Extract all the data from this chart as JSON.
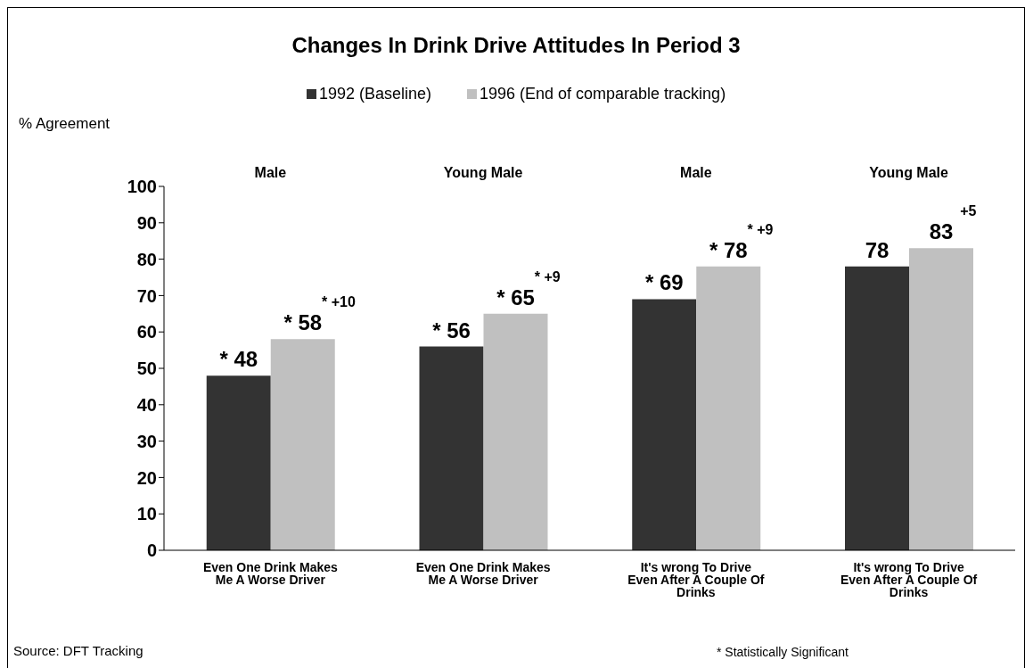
{
  "chart_data": {
    "type": "bar",
    "title": "Changes In Drink Drive Attitudes In Period 3",
    "ylabel": "% Agreement",
    "categories": [
      "Even One Drink Makes Me A Worse Driver",
      "Even One Drink Makes Me A Worse Driver",
      "It's wrong To Drive Even After A Couple Of Drinks",
      "It's wrong To Drive Even After A Couple Of Drinks"
    ],
    "series": [
      {
        "name": "1992 (Baseline)",
        "color": "#333333",
        "values": [
          48,
          56,
          69,
          78
        ],
        "value_labels": [
          "* 48",
          "* 56",
          "* 69",
          "78"
        ]
      },
      {
        "name": "1996 (End of comparable tracking)",
        "color": "#c0c0c0",
        "values": [
          58,
          65,
          78,
          83
        ],
        "value_labels": [
          "* 58",
          "* 65",
          "* 78",
          "83"
        ]
      }
    ],
    "ylim": [
      0,
      100
    ],
    "yticks": [
      0,
      10,
      20,
      30,
      40,
      50,
      60,
      70,
      80,
      90,
      100
    ],
    "legend": "top",
    "annotations": [
      "Male",
      "Young Male",
      "Male",
      "Young Male",
      "* +10",
      "* +9",
      "* +9",
      "+5",
      "Source: DFT Tracking",
      "* Statistically Significant"
    ]
  }
}
